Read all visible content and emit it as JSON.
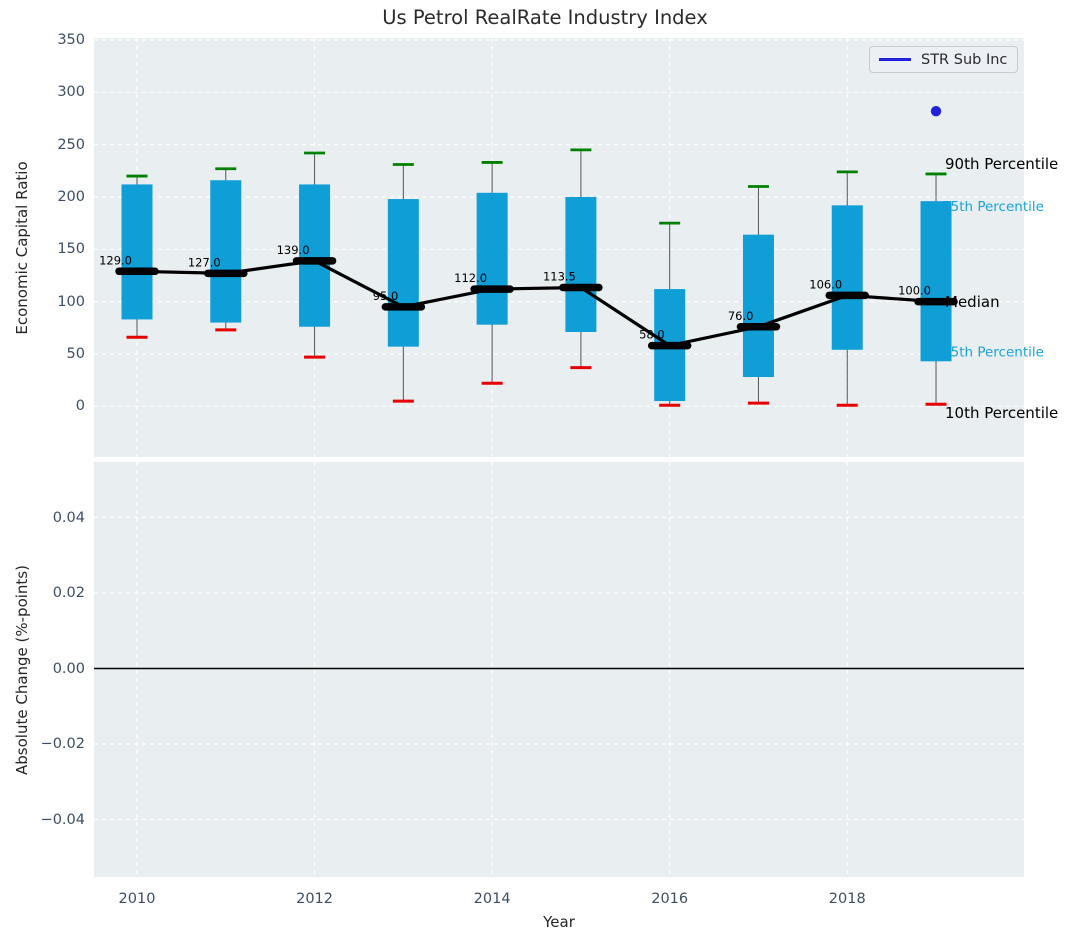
{
  "title": "Us Petrol RealRate Industry Index",
  "legend": {
    "label": "STR Sub Inc"
  },
  "colors": {
    "box_fill": "#0f9ed6",
    "whisker_line": "#555555",
    "cap_high": "#008000",
    "cap_low": "#e60000",
    "median": "#000000",
    "scatter": "#2222dd",
    "plot_bg": "#e9eef1",
    "grid": "#ffffff",
    "tick_label": "#3d4e63",
    "cyan_label": "#1aa3d6"
  },
  "chart_data": [
    {
      "type": "boxplot",
      "title": "Us Petrol RealRate Industry Index",
      "ylabel": "Economic Capital Ratio",
      "yticks": [
        0,
        50,
        100,
        150,
        200,
        250,
        300,
        350
      ],
      "ylim": [
        -48,
        350
      ],
      "grid": "dashed-white",
      "legend_position": "upper right",
      "categories": [
        2010,
        2011,
        2012,
        2013,
        2014,
        2015,
        2016,
        2017,
        2018,
        2019
      ],
      "boxes": [
        {
          "year": 2010,
          "whisker_low": 66,
          "q1": 83,
          "median": 129,
          "q3": 212,
          "whisker_high": 220,
          "label": "129.0"
        },
        {
          "year": 2011,
          "whisker_low": 73,
          "q1": 80,
          "median": 127,
          "q3": 216,
          "whisker_high": 227,
          "label": "127.0"
        },
        {
          "year": 2012,
          "whisker_low": 47,
          "q1": 76,
          "median": 139,
          "q3": 212,
          "whisker_high": 242,
          "label": "139.0"
        },
        {
          "year": 2013,
          "whisker_low": 5,
          "q1": 57,
          "median": 95,
          "q3": 198,
          "whisker_high": 231,
          "label": "95.0"
        },
        {
          "year": 2014,
          "whisker_low": 22,
          "q1": 78,
          "median": 112,
          "q3": 204,
          "whisker_high": 233,
          "label": "112.0"
        },
        {
          "year": 2015,
          "whisker_low": 37,
          "q1": 71,
          "median": 113.5,
          "q3": 200,
          "whisker_high": 245,
          "label": "113.5"
        },
        {
          "year": 2016,
          "whisker_low": 1,
          "q1": 5,
          "median": 58,
          "q3": 112,
          "whisker_high": 175,
          "label": "58.0"
        },
        {
          "year": 2017,
          "whisker_low": 3,
          "q1": 28,
          "median": 76,
          "q3": 164,
          "whisker_high": 210,
          "label": "76.0"
        },
        {
          "year": 2018,
          "whisker_low": 1,
          "q1": 54,
          "median": 106,
          "q3": 192,
          "whisker_high": 224,
          "label": "106.0"
        },
        {
          "year": 2019,
          "whisker_low": 2,
          "q1": 43,
          "median": 100,
          "q3": 196,
          "whisker_high": 222,
          "label": "100.0"
        }
      ],
      "median_line_series": {
        "name": "Median",
        "connects": "medians"
      },
      "scatter_series": {
        "name": "STR Sub Inc",
        "points": [
          {
            "x": 2019,
            "y": 282
          }
        ]
      },
      "percentile_labels": [
        {
          "text": "90th Percentile",
          "color": "#000000",
          "anchor": "whisker_high",
          "layer": "front",
          "size": 15
        },
        {
          "text": "75th Percentile",
          "color": "#1aa3d6",
          "anchor": "q3",
          "layer": "behind",
          "size": 13.5
        },
        {
          "text": "Median",
          "color": "#000000",
          "anchor": "median",
          "layer": "front",
          "size": 15
        },
        {
          "text": "25th Percentile",
          "color": "#1aa3d6",
          "anchor": "q1",
          "layer": "behind",
          "size": 13.5
        },
        {
          "text": "10th Percentile",
          "color": "#000000",
          "anchor": "whisker_low",
          "layer": "front",
          "size": 15
        }
      ]
    },
    {
      "type": "empty-axes",
      "ylabel": "Absolute Change (%-points)",
      "ytick_labels": [
        "0.04",
        "0.02",
        "0.00",
        "−0.02",
        "−0.04"
      ],
      "ytick_values": [
        0.04,
        0.02,
        0.0,
        -0.02,
        -0.04
      ],
      "zero_line": true,
      "xlabel": "Year",
      "xtick_labels": [
        "2010",
        "2012",
        "2014",
        "2016",
        "2018"
      ],
      "xtick_values": [
        2010,
        2012,
        2014,
        2016,
        2018
      ],
      "grid": "dashed-white"
    }
  ]
}
